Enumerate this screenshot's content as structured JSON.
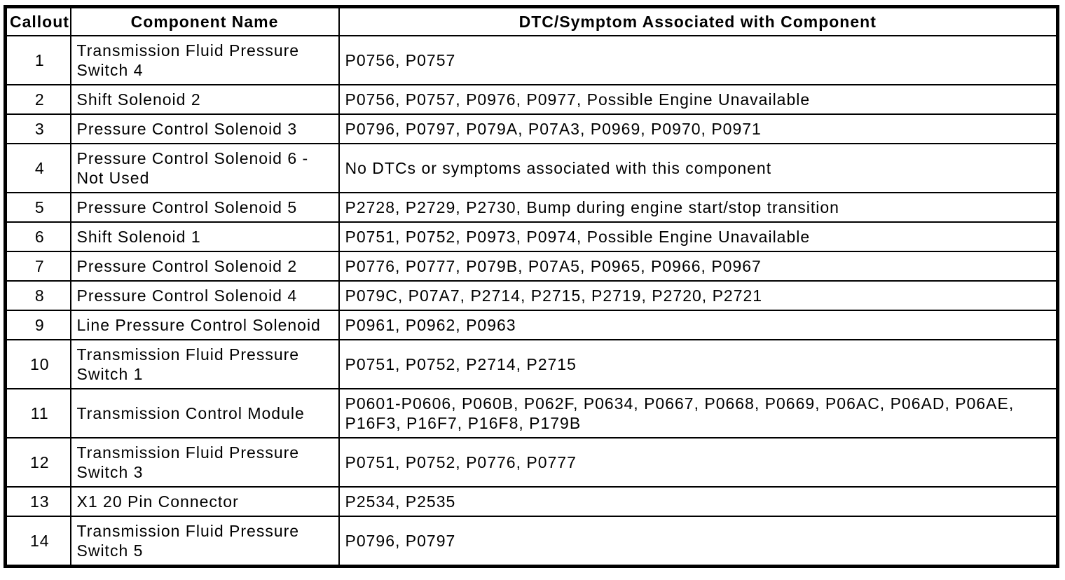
{
  "colors": {
    "border": "#000000",
    "background": "#ffffff",
    "text": "#000000"
  },
  "table": {
    "headers": [
      "Callout",
      "Component Name",
      "DTC/Symptom Associated with Component"
    ],
    "rows": [
      {
        "callout": "1",
        "component": "Transmission Fluid Pressure Switch 4",
        "dtc": "P0756, P0757"
      },
      {
        "callout": "2",
        "component": "Shift Solenoid 2",
        "dtc": "P0756, P0757, P0976, P0977, Possible Engine Unavailable"
      },
      {
        "callout": "3",
        "component": "Pressure Control Solenoid 3",
        "dtc": "P0796, P0797, P079A, P07A3, P0969, P0970, P0971"
      },
      {
        "callout": "4",
        "component": "Pressure Control Solenoid 6 - Not Used",
        "dtc": "No DTCs or symptoms associated with this component"
      },
      {
        "callout": "5",
        "component": "Pressure Control Solenoid 5",
        "dtc": "P2728, P2729, P2730, Bump during engine start/stop transition"
      },
      {
        "callout": "6",
        "component": "Shift Solenoid 1",
        "dtc": "P0751, P0752, P0973, P0974, Possible Engine Unavailable"
      },
      {
        "callout": "7",
        "component": "Pressure Control Solenoid 2",
        "dtc": "P0776, P0777, P079B, P07A5, P0965, P0966, P0967"
      },
      {
        "callout": "8",
        "component": "Pressure Control Solenoid 4",
        "dtc": "P079C, P07A7, P2714, P2715, P2719, P2720, P2721"
      },
      {
        "callout": "9",
        "component": "Line Pressure Control Solenoid",
        "dtc": "P0961, P0962, P0963"
      },
      {
        "callout": "10",
        "component": "Transmission Fluid Pressure Switch 1",
        "dtc": "P0751, P0752, P2714, P2715"
      },
      {
        "callout": "11",
        "component": "Transmission Control Module",
        "dtc": "P0601-P0606, P060B, P062F, P0634, P0667, P0668, P0669, P06AC, P06AD, P06AE, P16F3, P16F7, P16F8, P179B"
      },
      {
        "callout": "12",
        "component": "Transmission Fluid Pressure Switch 3",
        "dtc": "P0751, P0752, P0776, P0777"
      },
      {
        "callout": "13",
        "component": "X1 20 Pin Connector",
        "dtc": "P2534, P2535"
      },
      {
        "callout": "14",
        "component": "Transmission Fluid Pressure Switch 5",
        "dtc": "P0796, P0797"
      }
    ]
  }
}
